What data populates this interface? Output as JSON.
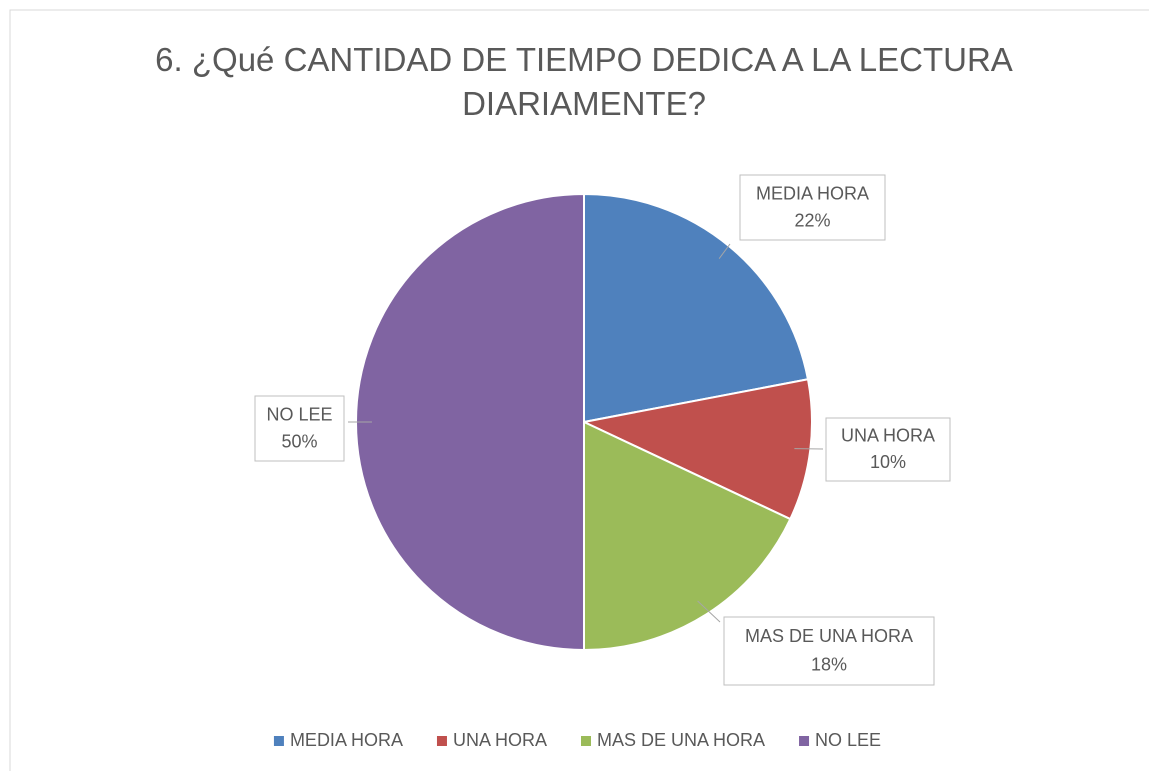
{
  "chart_data": {
    "type": "pie",
    "title": "6. ¿Qué CANTIDAD DE TIEMPO DEDICA A LA LECTURA DIARIAMENTE?",
    "categories": [
      "MEDIA HORA",
      "UNA HORA",
      "MAS DE UNA HORA",
      "NO LEE"
    ],
    "values": [
      22,
      10,
      18,
      50
    ],
    "value_labels": [
      "22%",
      "10%",
      "18%",
      "50%"
    ],
    "colors": [
      "#4f81bd",
      "#c0504d",
      "#9bbb59",
      "#8064a2"
    ],
    "legend": "bottom"
  }
}
